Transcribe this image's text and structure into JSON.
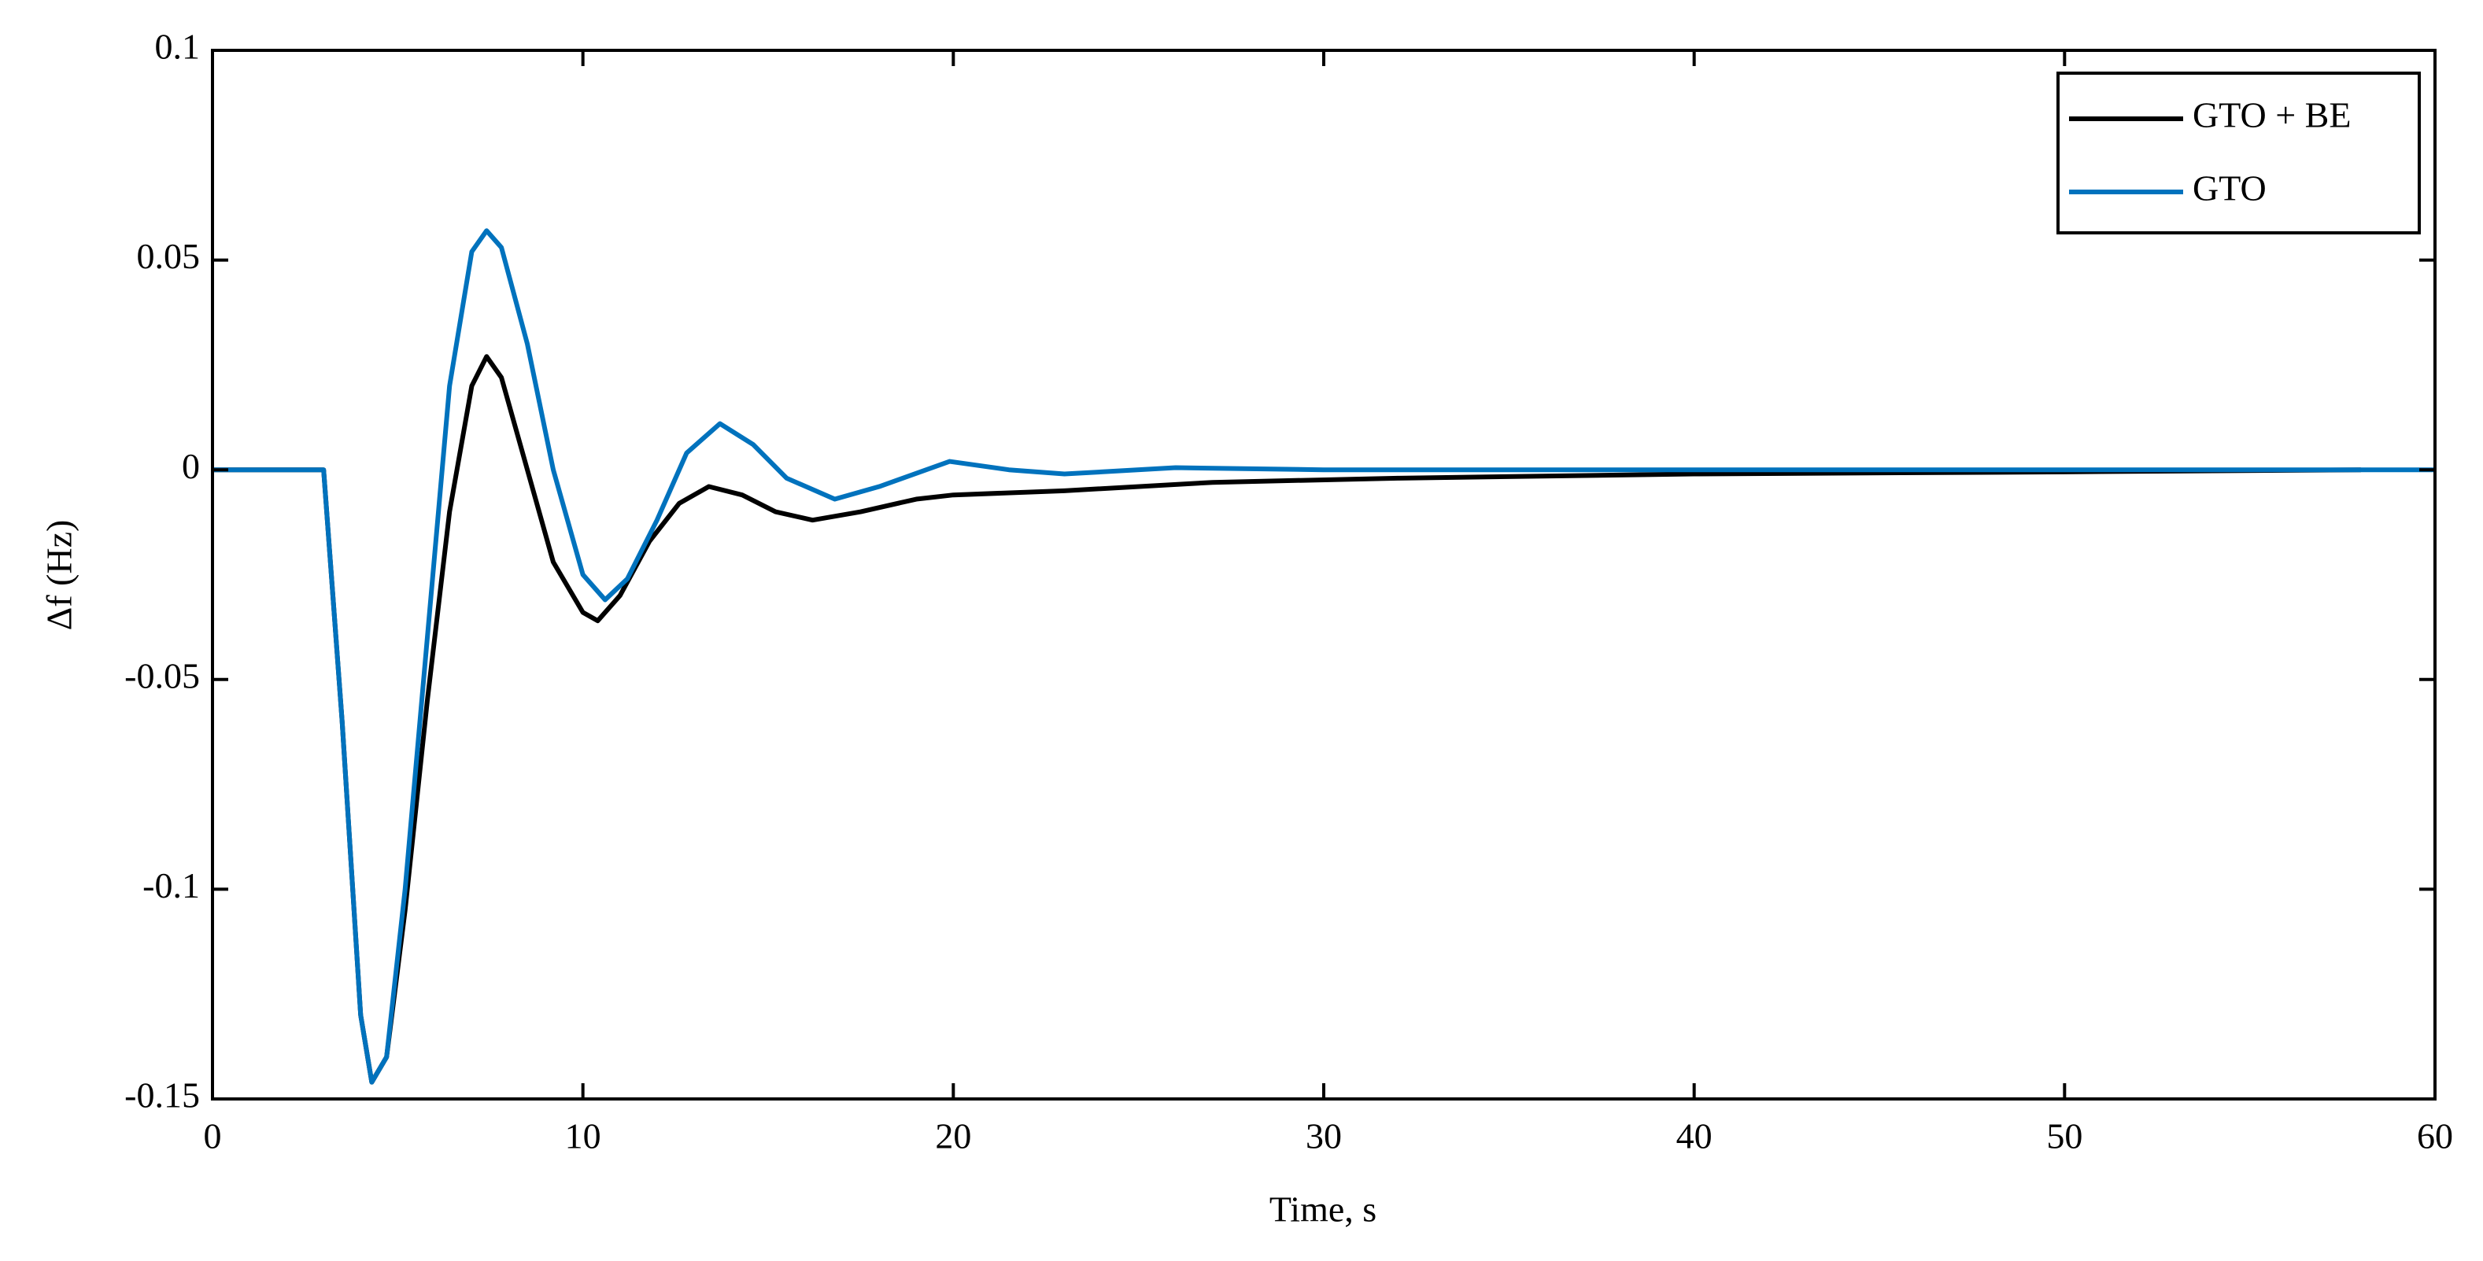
{
  "chart_data": {
    "type": "line",
    "xlabel": "Time, s",
    "ylabel": "Δf (Hz)",
    "xlim": [
      0,
      60
    ],
    "ylim": [
      -0.15,
      0.1
    ],
    "xticks": [
      0,
      10,
      20,
      30,
      40,
      50,
      60
    ],
    "yticks": [
      0.1,
      0.05,
      0,
      -0.05,
      -0.1,
      -0.15
    ],
    "legend": "upper right",
    "series": [
      {
        "name": "GTO + BE",
        "color": "#000000",
        "x": [
          0,
          3,
          3.5,
          4,
          4.3,
          4.7,
          5.2,
          5.8,
          6.4,
          7,
          7.4,
          7.8,
          8.5,
          9.2,
          10,
          10.4,
          11,
          11.8,
          12.6,
          13.4,
          14.3,
          15.2,
          16.2,
          17.5,
          19,
          20,
          23,
          27,
          32,
          40,
          50,
          58
        ],
        "values": [
          0,
          0,
          -0.06,
          -0.13,
          -0.146,
          -0.14,
          -0.105,
          -0.055,
          -0.01,
          0.02,
          0.027,
          0.022,
          0.0,
          -0.022,
          -0.034,
          -0.036,
          -0.03,
          -0.017,
          -0.008,
          -0.004,
          -0.006,
          -0.01,
          -0.012,
          -0.01,
          -0.007,
          -0.006,
          -0.005,
          -0.003,
          -0.002,
          -0.001,
          -0.0005,
          0
        ]
      },
      {
        "name": "GTO",
        "color": "#0072bd",
        "x": [
          0,
          3,
          3.5,
          4,
          4.3,
          4.7,
          5.2,
          5.8,
          6.4,
          7,
          7.4,
          7.8,
          8.5,
          9.2,
          10,
          10.6,
          11.2,
          12,
          12.8,
          13.7,
          14.6,
          15.5,
          16.8,
          18,
          19.9,
          21.5,
          23,
          26,
          30,
          40,
          50,
          60
        ],
        "values": [
          0,
          0,
          -0.06,
          -0.13,
          -0.146,
          -0.14,
          -0.1,
          -0.04,
          0.02,
          0.052,
          0.057,
          0.053,
          0.03,
          0.0,
          -0.025,
          -0.031,
          -0.026,
          -0.012,
          0.004,
          0.011,
          0.006,
          -0.002,
          -0.007,
          -0.004,
          0.002,
          0.0,
          -0.001,
          0.0005,
          0,
          0,
          0,
          0
        ]
      }
    ]
  }
}
